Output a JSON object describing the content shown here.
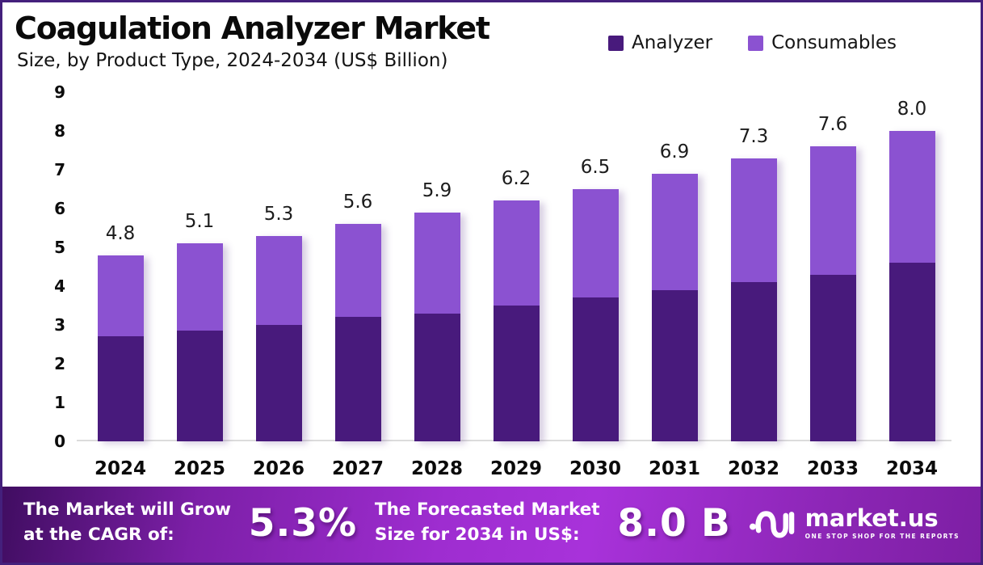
{
  "header": {
    "title": "Coagulation Analyzer Market",
    "subtitle": "Size, by Product Type, 2024-2034 (US$ Billion)"
  },
  "legend": [
    {
      "label": "Analyzer",
      "color": "#481a7c"
    },
    {
      "label": "Consumables",
      "color": "#8b52d1"
    }
  ],
  "colors": {
    "analyzer_bar": "#481a7c",
    "consumables_bar": "#8b52d1",
    "frame_border": "#44207c",
    "banner_gradient_start": "#400d61",
    "banner_gradient_mid": "#a832da",
    "banner_gradient_end": "#7d1fa4",
    "axis_line": "#dcdcdc"
  },
  "chart_data": {
    "type": "bar",
    "stacked": true,
    "title": "Coagulation Analyzer Market",
    "subtitle": "Size, by Product Type, 2024-2034 (US$ Billion)",
    "xlabel": "",
    "ylabel": "US$ Billion",
    "ylim": [
      0,
      9
    ],
    "yticks": [
      0,
      1,
      2,
      3,
      4,
      5,
      6,
      7,
      8,
      9
    ],
    "grid": false,
    "legend_position": "top-right",
    "categories": [
      "2024",
      "2025",
      "2026",
      "2027",
      "2028",
      "2029",
      "2030",
      "2031",
      "2032",
      "2033",
      "2034"
    ],
    "series": [
      {
        "name": "Analyzer",
        "color": "#481a7c",
        "values": [
          2.7,
          2.85,
          3.0,
          3.2,
          3.3,
          3.5,
          3.7,
          3.9,
          4.1,
          4.3,
          4.6
        ]
      },
      {
        "name": "Consumables",
        "color": "#8b52d1",
        "values": [
          2.1,
          2.25,
          2.3,
          2.4,
          2.6,
          2.7,
          2.8,
          3.0,
          3.2,
          3.3,
          3.4
        ]
      }
    ],
    "totals": [
      4.8,
      5.1,
      5.3,
      5.6,
      5.9,
      6.2,
      6.5,
      6.9,
      7.3,
      7.6,
      8.0
    ],
    "total_labels": [
      "4.8",
      "5.1",
      "5.3",
      "5.6",
      "5.9",
      "6.2",
      "6.5",
      "6.9",
      "7.3",
      "7.6",
      "8.0"
    ]
  },
  "banner": {
    "cagr_line1": "The Market will Grow",
    "cagr_line2": "at the CAGR of:",
    "cagr_value": "5.3%",
    "forecast_line1": "The Forecasted Market",
    "forecast_line2": "Size for 2034 in US$:",
    "forecast_value": "8.0 B",
    "logo_text": "market.us",
    "logo_tagline": "ONE STOP SHOP FOR THE REPORTS"
  }
}
